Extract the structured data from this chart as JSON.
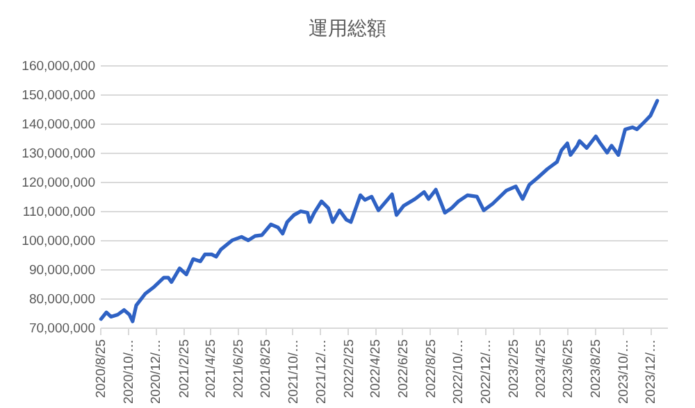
{
  "chart_data": {
    "type": "line",
    "title": "運用総額",
    "x": [
      "2020-08-27",
      "2020-09-08",
      "2020-09-18",
      "2020-10-03",
      "2020-10-17",
      "2020-10-29",
      "2020-11-05",
      "2020-11-13",
      "2020-12-03",
      "2020-12-23",
      "2021-01-13",
      "2021-01-23",
      "2021-01-30",
      "2021-02-17",
      "2021-03-04",
      "2021-03-19",
      "2021-04-04",
      "2021-04-14",
      "2021-04-29",
      "2021-05-09",
      "2021-05-19",
      "2021-06-13",
      "2021-07-04",
      "2021-07-19",
      "2021-08-03",
      "2021-08-18",
      "2021-09-07",
      "2021-09-23",
      "2021-10-03",
      "2021-10-13",
      "2021-10-28",
      "2021-11-12",
      "2021-11-27",
      "2021-12-02",
      "2021-12-12",
      "2021-12-28",
      "2022-01-12",
      "2022-01-22",
      "2022-02-06",
      "2022-02-21",
      "2022-03-03",
      "2022-03-24",
      "2022-04-03",
      "2022-04-18",
      "2022-05-03",
      "2022-06-02",
      "2022-06-12",
      "2022-06-28",
      "2022-07-23",
      "2022-08-12",
      "2022-08-22",
      "2022-09-07",
      "2022-09-27",
      "2022-10-12",
      "2022-10-27",
      "2022-11-16",
      "2022-12-07",
      "2022-12-22",
      "2023-01-11",
      "2023-02-10",
      "2023-03-03",
      "2023-03-18",
      "2023-04-02",
      "2023-04-22",
      "2023-05-12",
      "2023-06-02",
      "2023-06-12",
      "2023-06-25",
      "2023-07-02",
      "2023-07-17",
      "2023-07-22",
      "2023-08-07",
      "2023-08-27",
      "2023-09-06",
      "2023-09-21",
      "2023-10-01",
      "2023-10-16",
      "2023-10-31",
      "2023-11-16",
      "2023-11-26",
      "2023-12-11",
      "2023-12-26",
      "2024-01-10"
    ],
    "series": [
      {
        "color": "#2f62c4",
        "values": [
          72900000,
          75200000,
          73700000,
          74400000,
          76000000,
          74400000,
          72100000,
          77600000,
          81600000,
          84000000,
          87100000,
          87100000,
          85600000,
          90300000,
          88200000,
          93500000,
          92700000,
          95100000,
          95100000,
          94300000,
          96700000,
          99900000,
          101100000,
          99900000,
          101400000,
          101700000,
          105400000,
          104300000,
          102200000,
          106200000,
          108600000,
          109900000,
          109400000,
          106200000,
          109400000,
          113300000,
          111000000,
          106200000,
          110200000,
          107000000,
          106200000,
          115400000,
          113800000,
          114900000,
          110200000,
          115700000,
          108600000,
          111800000,
          114100000,
          116500000,
          114100000,
          117300000,
          109400000,
          111000000,
          113300000,
          115400000,
          114900000,
          110200000,
          112500000,
          117000000,
          118400000,
          114100000,
          119000000,
          121600000,
          124400000,
          126800000,
          130800000,
          133200000,
          129200000,
          132400000,
          134000000,
          131600000,
          135600000,
          133200000,
          130000000,
          132400000,
          129200000,
          138000000,
          138700000,
          138000000,
          140300000,
          142700000,
          147800000
        ]
      }
    ],
    "xlim": [
      "2020-08-25",
      "2024-02-01"
    ],
    "xticks": [
      {
        "value": "2020-08-25",
        "label": "2020/8/25"
      },
      {
        "value": "2020-10-25",
        "label": "2020/10/…"
      },
      {
        "value": "2020-12-25",
        "label": "2020/12/…"
      },
      {
        "value": "2021-02-25",
        "label": "2021/2/25"
      },
      {
        "value": "2021-04-25",
        "label": "2021/4/25"
      },
      {
        "value": "2021-06-25",
        "label": "2021/6/25"
      },
      {
        "value": "2021-08-25",
        "label": "2021/8/25"
      },
      {
        "value": "2021-10-25",
        "label": "2021/10/…"
      },
      {
        "value": "2021-12-25",
        "label": "2021/12/…"
      },
      {
        "value": "2022-02-25",
        "label": "2022/2/25"
      },
      {
        "value": "2022-04-25",
        "label": "2022/4/25"
      },
      {
        "value": "2022-06-25",
        "label": "2022/6/25"
      },
      {
        "value": "2022-08-25",
        "label": "2022/8/25"
      },
      {
        "value": "2022-10-25",
        "label": "2022/10/…"
      },
      {
        "value": "2022-12-25",
        "label": "2022/12/…"
      },
      {
        "value": "2023-02-25",
        "label": "2023/2/25"
      },
      {
        "value": "2023-04-25",
        "label": "2023/4/25"
      },
      {
        "value": "2023-06-25",
        "label": "2023/6/25"
      },
      {
        "value": "2023-08-25",
        "label": "2023/8/25"
      },
      {
        "value": "2023-10-25",
        "label": "2023/10/…"
      },
      {
        "value": "2023-12-25",
        "label": "2023/12/…"
      }
    ],
    "ylim": [
      70000000,
      160000000
    ],
    "yticks": [
      {
        "value": 70000000,
        "label": "70,000,000"
      },
      {
        "value": 80000000,
        "label": "80,000,000"
      },
      {
        "value": 90000000,
        "label": "90,000,000"
      },
      {
        "value": 100000000,
        "label": "100,000,000"
      },
      {
        "value": 110000000,
        "label": "110,000,000"
      },
      {
        "value": 120000000,
        "label": "120,000,000"
      },
      {
        "value": 130000000,
        "label": "130,000,000"
      },
      {
        "value": 140000000,
        "label": "140,000,000"
      },
      {
        "value": 150000000,
        "label": "150,000,000"
      },
      {
        "value": 160000000,
        "label": "160,000,000"
      }
    ],
    "grid": "y"
  }
}
